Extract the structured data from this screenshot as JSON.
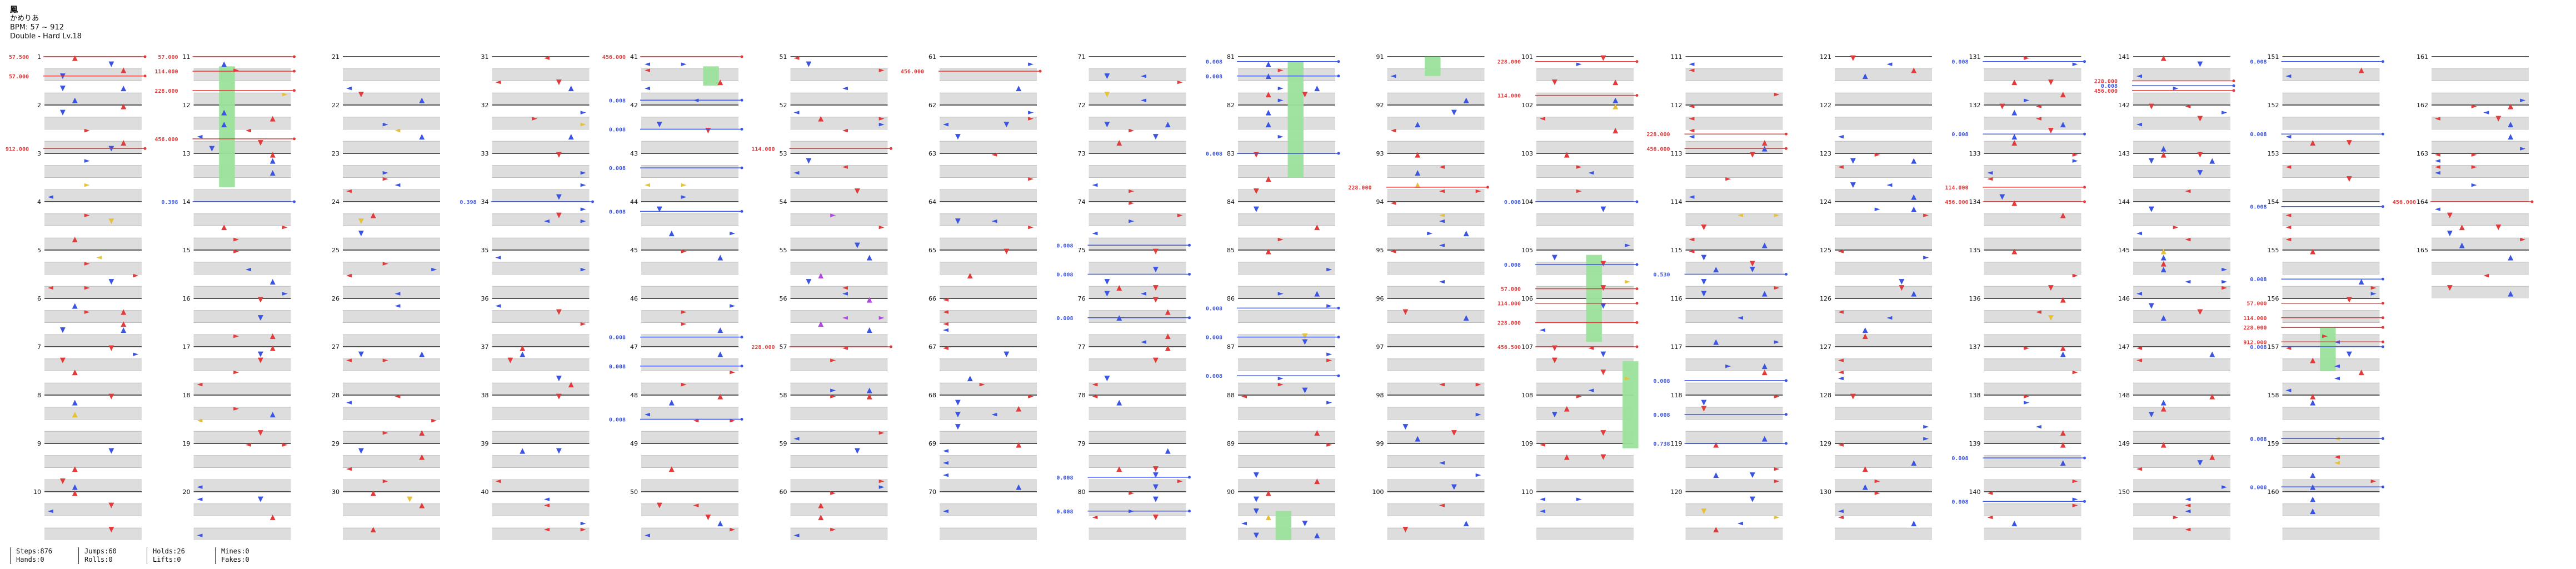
{
  "header": {
    "title": "鳳",
    "artist": "かめりあ",
    "bpm": "BPM: 57 ~ 912",
    "difficulty": "Double - Hard Lv.18"
  },
  "stats": {
    "steps": "Steps:876",
    "hands": "Hands:0",
    "jumps": "Jumps:60",
    "rolls": "Rolls:0",
    "holds": "Holds:26",
    "lifts": "Lifts:0",
    "mines": "Mines:0",
    "fakes": "Fakes:0"
  },
  "chart_data": {
    "type": "table",
    "measures_total": 165,
    "measures_per_column": 10,
    "columns": 17,
    "colors": {
      "quarter": "#e23b3b",
      "eighth": "#3b54e2",
      "twelfth": "#b04adf",
      "sixteenth": "#e6c23a",
      "hold": "#9be29b",
      "bpm_change": "#e23b3b",
      "stop": "#3b54e2"
    },
    "bpm_changes": [
      {
        "measure": 1,
        "label": "57.500"
      },
      {
        "measure": 1.4,
        "label": "57.000"
      },
      {
        "measure": 2.9,
        "label": "912.000"
      },
      {
        "measure": 11,
        "label": "57.000"
      },
      {
        "measure": 11.3,
        "label": "114.000"
      },
      {
        "measure": 11.7,
        "label": "228.000"
      },
      {
        "measure": 12.7,
        "label": "456.000"
      },
      {
        "measure": 41,
        "label": "456.000"
      },
      {
        "measure": 52.9,
        "label": "114.000"
      },
      {
        "measure": 57,
        "label": "228.000"
      },
      {
        "measure": 61.3,
        "label": "456.000"
      },
      {
        "measure": 93.7,
        "label": "228.000"
      },
      {
        "measure": 101.1,
        "label": "228.000"
      },
      {
        "measure": 101.8,
        "label": "114.000"
      },
      {
        "measure": 105.8,
        "label": "57.000"
      },
      {
        "measure": 106.1,
        "label": "114.000"
      },
      {
        "measure": 106.5,
        "label": "228.000"
      },
      {
        "measure": 107,
        "label": "456.500"
      },
      {
        "measure": 112.6,
        "label": "228.000"
      },
      {
        "measure": 112.9,
        "label": "456.000"
      },
      {
        "measure": 133.7,
        "label": "114.000"
      },
      {
        "measure": 134,
        "label": "456.000"
      },
      {
        "measure": 141.5,
        "label": "228.000"
      },
      {
        "measure": 141.7,
        "label": "456.000"
      },
      {
        "measure": 156.1,
        "label": "57.000"
      },
      {
        "measure": 156.4,
        "label": "114.000"
      },
      {
        "measure": 156.6,
        "label": "228.000"
      },
      {
        "measure": 156.9,
        "label": "912.000"
      },
      {
        "measure": 164,
        "label": "456.000"
      }
    ],
    "stops": [
      {
        "measure": 14,
        "label": "0.398"
      },
      {
        "measure": 34,
        "label": "0.398"
      },
      {
        "measure": 41.9,
        "label": "0.008"
      },
      {
        "measure": 42.5,
        "label": "0.008"
      },
      {
        "measure": 43.3,
        "label": "0.008"
      },
      {
        "measure": 44.2,
        "label": "0.008"
      },
      {
        "measure": 46.8,
        "label": "0.008"
      },
      {
        "measure": 47.4,
        "label": "0.008"
      },
      {
        "measure": 48.5,
        "label": "0.008"
      },
      {
        "measure": 74.9,
        "label": "0.008"
      },
      {
        "measure": 75.5,
        "label": "0.008"
      },
      {
        "measure": 76.4,
        "label": "0.008"
      },
      {
        "measure": 79.7,
        "label": "0.008"
      },
      {
        "measure": 80.4,
        "label": "0.008"
      },
      {
        "measure": 81.1,
        "label": "0.008"
      },
      {
        "measure": 81.4,
        "label": "0.008"
      },
      {
        "measure": 83.0,
        "label": "0.008"
      },
      {
        "measure": 86.2,
        "label": "0.008"
      },
      {
        "measure": 86.8,
        "label": "0.008"
      },
      {
        "measure": 87.6,
        "label": "0.008"
      },
      {
        "measure": 104.0,
        "label": "0.008"
      },
      {
        "measure": 105.3,
        "label": "0.008"
      },
      {
        "measure": 115.5,
        "label": "0.530"
      },
      {
        "measure": 117.7,
        "label": "0.008"
      },
      {
        "measure": 118.4,
        "label": "0.008"
      },
      {
        "measure": 119.0,
        "label": "0.738"
      },
      {
        "measure": 131.1,
        "label": "0.008"
      },
      {
        "measure": 132.6,
        "label": "0.008"
      },
      {
        "measure": 139.3,
        "label": "0.008"
      },
      {
        "measure": 140.2,
        "label": "0.008"
      },
      {
        "measure": 141.6,
        "label": "0.008"
      },
      {
        "measure": 151.1,
        "label": "0.008"
      },
      {
        "measure": 152.6,
        "label": "0.008"
      },
      {
        "measure": 154.1,
        "label": "0.008"
      },
      {
        "measure": 155.6,
        "label": "0.008"
      },
      {
        "measure": 157.0,
        "label": "0.008"
      },
      {
        "measure": 158.9,
        "label": "0.008"
      },
      {
        "measure": 159.9,
        "label": "0.008"
      }
    ],
    "holds": [
      {
        "measure": 11.2,
        "length": 2.5,
        "lane": 2
      },
      {
        "measure": 41.2,
        "length": 0.4,
        "lane": 5
      },
      {
        "measure": 81.1,
        "length": 2.4,
        "lane": 4
      },
      {
        "measure": 90.4,
        "length": 1.0,
        "lane": 3
      },
      {
        "measure": 105.1,
        "length": 1.8,
        "lane": 4
      },
      {
        "measure": 107.3,
        "length": 1.8,
        "lane": 7
      },
      {
        "measure": 156.6,
        "length": 0.9,
        "lane": 3
      }
    ]
  }
}
